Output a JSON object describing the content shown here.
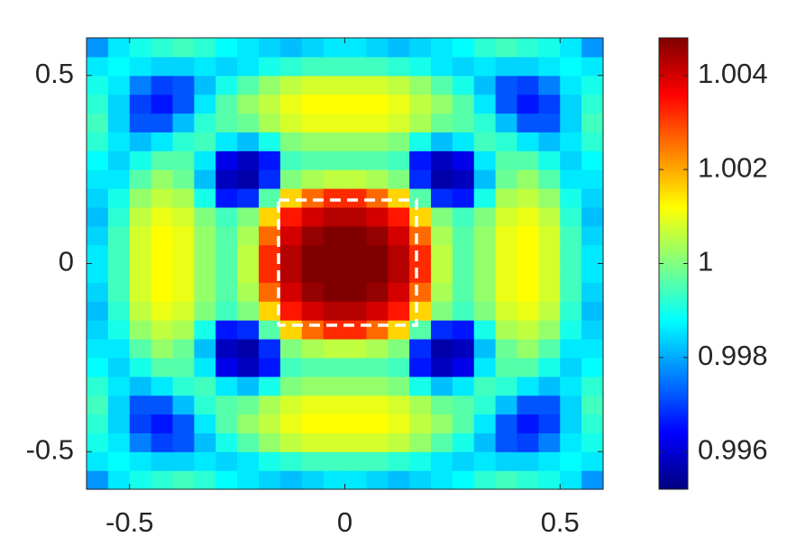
{
  "chart_data": {
    "type": "heatmap",
    "x": [
      -0.575,
      -0.525,
      -0.475,
      -0.425,
      -0.375,
      -0.325,
      -0.275,
      -0.225,
      -0.175,
      -0.125,
      -0.075,
      -0.025,
      0.025,
      0.075,
      0.125,
      0.175,
      0.225,
      0.275,
      0.325,
      0.375,
      0.425,
      0.475,
      0.525,
      0.575
    ],
    "y": [
      -0.575,
      -0.525,
      -0.475,
      -0.425,
      -0.375,
      -0.325,
      -0.275,
      -0.225,
      -0.175,
      -0.125,
      -0.075,
      -0.025,
      0.025,
      0.075,
      0.125,
      0.175,
      0.225,
      0.275,
      0.325,
      0.375,
      0.425,
      0.475,
      0.525,
      0.575
    ],
    "z": [
      [
        0.9978,
        0.9986,
        0.999,
        0.9992,
        0.9994,
        0.9992,
        0.9988,
        0.9986,
        0.9984,
        0.9982,
        0.9984,
        0.9986,
        0.9986,
        0.9984,
        0.9982,
        0.9984,
        0.9986,
        0.9988,
        0.9992,
        0.9994,
        0.9992,
        0.999,
        0.9986,
        0.9978
      ],
      [
        0.9986,
        0.9988,
        0.9986,
        0.9984,
        0.9984,
        0.9986,
        0.9984,
        0.9986,
        0.999,
        0.9992,
        0.9994,
        0.9994,
        0.9994,
        0.9994,
        0.9992,
        0.999,
        0.9986,
        0.9984,
        0.9986,
        0.9984,
        0.9984,
        0.9986,
        0.9988,
        0.9986
      ],
      [
        0.999,
        0.9986,
        0.9976,
        0.997,
        0.9972,
        0.9982,
        0.999,
        0.9996,
        1.0002,
        1.0006,
        1.0008,
        1.0008,
        1.0008,
        1.0008,
        1.0006,
        1.0002,
        0.9996,
        0.999,
        0.9982,
        0.9972,
        0.997,
        0.9976,
        0.9986,
        0.999
      ],
      [
        0.9992,
        0.9984,
        0.997,
        0.9966,
        0.9972,
        0.9986,
        0.9996,
        1.0002,
        1.0006,
        1.001,
        1.0012,
        1.0012,
        1.0012,
        1.0012,
        1.001,
        1.0006,
        1.0002,
        0.9996,
        0.9986,
        0.9972,
        0.9966,
        0.997,
        0.9984,
        0.9992
      ],
      [
        0.9994,
        0.9984,
        0.9972,
        0.9972,
        0.9982,
        0.9992,
        0.9996,
        0.9998,
        1.0004,
        1.0008,
        1.001,
        1.001,
        1.001,
        1.001,
        1.0008,
        1.0004,
        0.9998,
        0.9996,
        0.9992,
        0.9982,
        0.9972,
        0.9972,
        0.9984,
        0.9994
      ],
      [
        0.9992,
        0.9986,
        0.9982,
        0.9986,
        0.9992,
        0.9994,
        0.9986,
        0.9982,
        0.999,
        1.0,
        1.0002,
        1.0002,
        1.0002,
        1.0002,
        1.0,
        0.999,
        0.9982,
        0.9986,
        0.9994,
        0.9992,
        0.9986,
        0.9982,
        0.9986,
        0.9992
      ],
      [
        0.9988,
        0.9984,
        0.999,
        0.9996,
        0.9996,
        0.9986,
        0.9962,
        0.9958,
        0.9966,
        0.9994,
        0.9996,
        0.9996,
        0.9996,
        0.9996,
        0.9994,
        0.9966,
        0.9958,
        0.9962,
        0.9986,
        0.9996,
        0.9996,
        0.999,
        0.9984,
        0.9988
      ],
      [
        0.9986,
        0.9986,
        0.9996,
        1.0002,
        0.9998,
        0.9982,
        0.9958,
        0.9956,
        0.9968,
        1.0,
        1.0004,
        1.0006,
        1.0006,
        1.0004,
        1.0,
        0.9968,
        0.9956,
        0.9958,
        0.9982,
        0.9998,
        1.0002,
        0.9996,
        0.9986,
        0.9986
      ],
      [
        0.9984,
        0.999,
        1.0002,
        1.0006,
        1.0004,
        0.999,
        0.9966,
        0.9968,
        0.9996,
        1.0016,
        1.0026,
        1.0032,
        1.0032,
        1.0026,
        1.0016,
        0.9996,
        0.9968,
        0.9966,
        0.999,
        1.0004,
        1.0006,
        1.0002,
        0.999,
        0.9984
      ],
      [
        0.9982,
        0.9992,
        1.0006,
        1.001,
        1.0008,
        1.0,
        0.9994,
        1.0,
        1.0016,
        1.0034,
        1.004,
        1.0043,
        1.0043,
        1.004,
        1.0034,
        1.0016,
        1.0,
        0.9994,
        1.0,
        1.0008,
        1.001,
        1.0006,
        0.9992,
        0.9982
      ],
      [
        0.9984,
        0.9994,
        1.0008,
        1.0012,
        1.001,
        1.0002,
        0.9996,
        1.0004,
        1.0026,
        1.004,
        1.0046,
        1.0048,
        1.0048,
        1.0046,
        1.004,
        1.0026,
        1.0004,
        0.9996,
        1.0002,
        1.001,
        1.0012,
        1.0008,
        0.9994,
        0.9984
      ],
      [
        0.9986,
        0.9994,
        1.0008,
        1.0012,
        1.001,
        1.0002,
        0.9996,
        1.0006,
        1.0032,
        1.0043,
        1.0048,
        1.0048,
        1.0048,
        1.0048,
        1.0043,
        1.0032,
        1.0006,
        0.9996,
        1.0002,
        1.001,
        1.0012,
        1.0008,
        0.9994,
        0.9986
      ],
      [
        0.9986,
        0.9994,
        1.0008,
        1.0012,
        1.001,
        1.0002,
        0.9996,
        1.0006,
        1.0032,
        1.0043,
        1.0048,
        1.0048,
        1.0048,
        1.0048,
        1.0043,
        1.0032,
        1.0006,
        0.9996,
        1.0002,
        1.001,
        1.0012,
        1.0008,
        0.9994,
        0.9986
      ],
      [
        0.9984,
        0.9994,
        1.0008,
        1.0012,
        1.001,
        1.0002,
        0.9996,
        1.0004,
        1.0026,
        1.004,
        1.0046,
        1.0048,
        1.0048,
        1.0046,
        1.004,
        1.0026,
        1.0004,
        0.9996,
        1.0002,
        1.001,
        1.0012,
        1.0008,
        0.9994,
        0.9984
      ],
      [
        0.9982,
        0.9992,
        1.0006,
        1.001,
        1.0008,
        1.0,
        0.9994,
        1.0,
        1.0016,
        1.0034,
        1.004,
        1.0043,
        1.0043,
        1.004,
        1.0034,
        1.0016,
        1.0,
        0.9994,
        1.0,
        1.0008,
        1.001,
        1.0006,
        0.9992,
        0.9982
      ],
      [
        0.9984,
        0.999,
        1.0002,
        1.0006,
        1.0004,
        0.999,
        0.9966,
        0.9968,
        0.9996,
        1.0016,
        1.0026,
        1.0032,
        1.0032,
        1.0026,
        1.0016,
        0.9996,
        0.9968,
        0.9966,
        0.999,
        1.0004,
        1.0006,
        1.0002,
        0.999,
        0.9984
      ],
      [
        0.9986,
        0.9986,
        0.9996,
        1.0002,
        0.9998,
        0.9982,
        0.9958,
        0.9956,
        0.9968,
        1.0,
        1.0004,
        1.0006,
        1.0006,
        1.0004,
        1.0,
        0.9968,
        0.9956,
        0.9958,
        0.9982,
        0.9998,
        1.0002,
        0.9996,
        0.9986,
        0.9986
      ],
      [
        0.9988,
        0.9984,
        0.999,
        0.9996,
        0.9996,
        0.9986,
        0.9962,
        0.9958,
        0.9966,
        0.9994,
        0.9996,
        0.9996,
        0.9996,
        0.9996,
        0.9994,
        0.9966,
        0.9958,
        0.9962,
        0.9986,
        0.9996,
        0.9996,
        0.999,
        0.9984,
        0.9988
      ],
      [
        0.9992,
        0.9986,
        0.9982,
        0.9986,
        0.9992,
        0.9994,
        0.9986,
        0.9982,
        0.999,
        1.0,
        1.0002,
        1.0002,
        1.0002,
        1.0002,
        1.0,
        0.999,
        0.9982,
        0.9986,
        0.9994,
        0.9992,
        0.9986,
        0.9982,
        0.9986,
        0.9992
      ],
      [
        0.9994,
        0.9984,
        0.9972,
        0.9972,
        0.9982,
        0.9992,
        0.9996,
        0.9998,
        1.0004,
        1.0008,
        1.001,
        1.001,
        1.001,
        1.001,
        1.0008,
        1.0004,
        0.9998,
        0.9996,
        0.9992,
        0.9982,
        0.9972,
        0.9972,
        0.9984,
        0.9994
      ],
      [
        0.9992,
        0.9984,
        0.997,
        0.9966,
        0.9972,
        0.9986,
        0.9996,
        1.0002,
        1.0006,
        1.001,
        1.0012,
        1.0012,
        1.0012,
        1.0012,
        1.001,
        1.0006,
        1.0002,
        0.9996,
        0.9986,
        0.9972,
        0.9966,
        0.997,
        0.9984,
        0.9992
      ],
      [
        0.999,
        0.9986,
        0.9976,
        0.997,
        0.9972,
        0.9982,
        0.999,
        0.9996,
        1.0002,
        1.0006,
        1.0008,
        1.0008,
        1.0008,
        1.0008,
        1.0006,
        1.0002,
        0.9996,
        0.999,
        0.9982,
        0.9972,
        0.997,
        0.9976,
        0.9986,
        0.999
      ],
      [
        0.9986,
        0.9988,
        0.9986,
        0.9984,
        0.9984,
        0.9986,
        0.9984,
        0.9986,
        0.999,
        0.9992,
        0.9994,
        0.9994,
        0.9994,
        0.9994,
        0.9992,
        0.999,
        0.9986,
        0.9984,
        0.9986,
        0.9984,
        0.9984,
        0.9986,
        0.9988,
        0.9986
      ],
      [
        0.9978,
        0.9986,
        0.999,
        0.9992,
        0.9994,
        0.9992,
        0.9988,
        0.9986,
        0.9984,
        0.9982,
        0.9984,
        0.9986,
        0.9986,
        0.9984,
        0.9982,
        0.9984,
        0.9986,
        0.9988,
        0.9992,
        0.9994,
        0.9992,
        0.999,
        0.9986,
        0.9978
      ]
    ],
    "xlim": [
      -0.6,
      0.6
    ],
    "ylim": [
      -0.6,
      0.6
    ],
    "xticks": [
      -0.5,
      0,
      0.5
    ],
    "yticks": [
      -0.5,
      0,
      0.5
    ],
    "colorbar": {
      "lim": [
        0.9952,
        1.0048
      ],
      "ticks": [
        0.996,
        0.998,
        1,
        1.002,
        1.004
      ],
      "colormap": "jet"
    }
  }
}
